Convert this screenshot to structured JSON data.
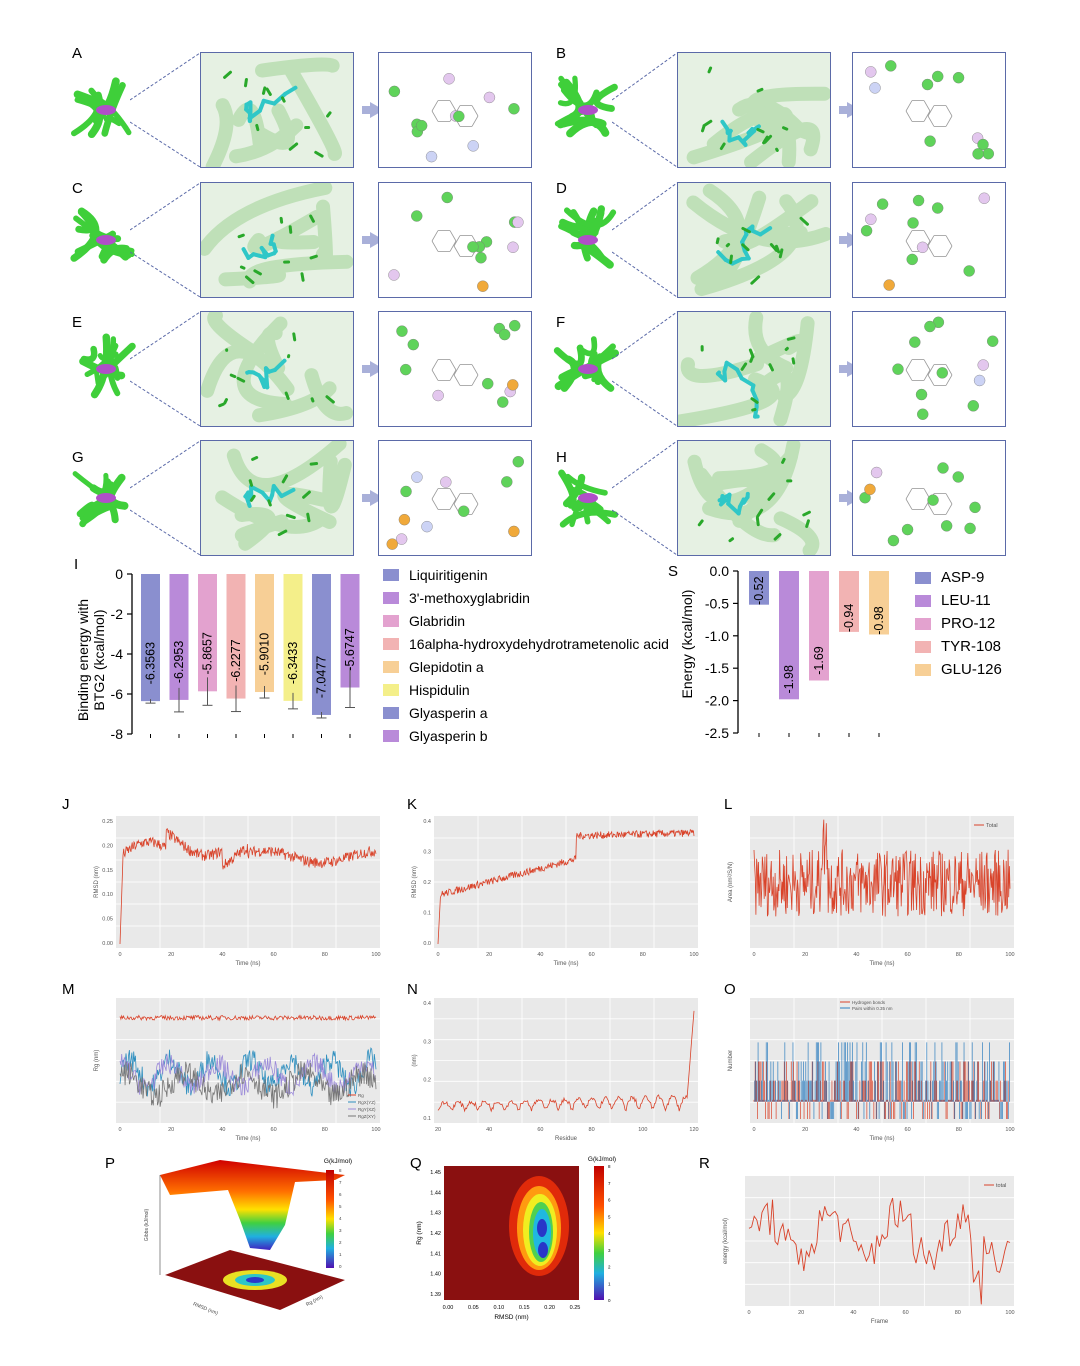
{
  "panels": {
    "labels": [
      "A",
      "B",
      "C",
      "D",
      "E",
      "F",
      "G",
      "H",
      "I",
      "S",
      "J",
      "K",
      "L",
      "M",
      "N",
      "O",
      "P",
      "Q",
      "R"
    ]
  },
  "colors": {
    "protein": "#3fcf3a",
    "ligand": "#2fc7c7",
    "frame": "#5b6aa8",
    "arrow": "#a9b0d9",
    "trace": "#d9432a",
    "trace_blue": "#2f7fbf"
  },
  "chart_data": [
    {
      "id": "I",
      "type": "bar",
      "ylabel": "Binding energy with BTG2 (kcal/mol)",
      "ylim": [
        -8,
        0
      ],
      "yticks": [
        0,
        -2,
        -4,
        -6,
        -8
      ],
      "categories": [
        "Liquiritigenin",
        "3'-methoxyglabridin",
        "Glabridin",
        "16alpha-hydroxydehydrotrametenolic acid",
        "Glepidotin a",
        "Hispidulin",
        "Glyasperin a",
        "Glyasperin b"
      ],
      "values": [
        -6.3563,
        -6.2953,
        -5.8657,
        -6.2277,
        -5.901,
        -6.3433,
        -7.0477,
        -5.6747
      ],
      "value_labels": [
        "-6.3563",
        "-6.2953",
        "-5.8657",
        "-6.2277",
        "-5.9010",
        "-6.3433",
        "-7.0477",
        "-5.6747"
      ],
      "errors": [
        0.1,
        0.6,
        0.7,
        0.65,
        0.3,
        0.4,
        0.15,
        1.0
      ],
      "colors": [
        "#8a8fcf",
        "#b98ad9",
        "#e3a2cf",
        "#f2b3b3",
        "#f7cf96",
        "#f4ef8a",
        "#8a8fcf",
        "#b98ad9"
      ]
    },
    {
      "id": "S",
      "type": "bar",
      "ylabel": "Energy (kcal/mol)",
      "ylim": [
        -2.5,
        0
      ],
      "yticks": [
        "0.0",
        "-0.5",
        "-1.0",
        "-1.5",
        "-2.0",
        "-2.5"
      ],
      "ytick_values": [
        0,
        -0.5,
        -1.0,
        -1.5,
        -2.0,
        -2.5
      ],
      "categories": [
        "ASP-9",
        "LEU-11",
        "PRO-12",
        "TYR-108",
        "GLU-126"
      ],
      "values": [
        -0.52,
        -1.98,
        -1.69,
        -0.94,
        -0.98
      ],
      "value_labels": [
        "-0.52",
        "-1.98",
        "-1.69",
        "-0.94",
        "-0.98"
      ],
      "colors": [
        "#8a8fcf",
        "#b98ad9",
        "#e3a2cf",
        "#f2b3b3",
        "#f7cf96"
      ]
    }
  ],
  "md": {
    "J": {
      "xlabel": "Time (ns)",
      "ylabel": "RMSD (nm)",
      "xticks": [
        "0",
        "20",
        "40",
        "60",
        "80",
        "100"
      ],
      "yticks": [
        "0.00",
        "0.05",
        "0.10",
        "0.15",
        "0.20",
        "0.25"
      ]
    },
    "K": {
      "xlabel": "Time (ns)",
      "ylabel": "RMSD (nm)",
      "xticks": [
        "0",
        "20",
        "40",
        "60",
        "80",
        "100"
      ],
      "yticks": [
        "0.0",
        "0.1",
        "0.2",
        "0.3",
        "0.4"
      ]
    },
    "L": {
      "xlabel": "Time (ns)",
      "ylabel": "Area (nm²/S/N)",
      "legend": "Total",
      "xticks": [
        "0",
        "20",
        "40",
        "60",
        "80",
        "100"
      ]
    },
    "M": {
      "xlabel": "Time (ns)",
      "ylabel": "Rg (nm)",
      "legend": [
        "Rg",
        "RgX(YZ)",
        "RgY(XZ)",
        "RgZ(XY)"
      ],
      "xticks": [
        "0",
        "20",
        "40",
        "60",
        "80",
        "100"
      ]
    },
    "N": {
      "xlabel": "Residue",
      "ylabel": "(nm)",
      "xticks": [
        "20",
        "40",
        "60",
        "80",
        "100",
        "120"
      ],
      "yticks": [
        "0.1",
        "0.2",
        "0.3",
        "0.4"
      ]
    },
    "O": {
      "xlabel": "Time (ns)",
      "ylabel": "Number",
      "legend": [
        "Hydrogen bonds",
        "Pairs within 0.35 nm"
      ],
      "xticks": [
        "0",
        "20",
        "40",
        "60",
        "80",
        "100"
      ]
    },
    "P": {
      "zlabel": "G(kJ/mol)",
      "xlabel": "RMSD (nm)",
      "ylabel": "Rg (nm)"
    },
    "Q": {
      "colorbar": "G(kJ/mol)",
      "xlabel": "RMSD (nm)",
      "ylabel": "Rg (nm)",
      "xticks": [
        "0.00",
        "0.05",
        "0.10",
        "0.15",
        "0.20",
        "0.25"
      ],
      "yticks": [
        "1.39",
        "1.40",
        "1.41",
        "1.42",
        "1.43",
        "1.44",
        "1.45"
      ]
    },
    "R": {
      "xlabel": "Frame",
      "ylabel": "energy (kcal/mol)",
      "legend": "total",
      "xticks": [
        "0",
        "20",
        "40",
        "60",
        "80",
        "100"
      ]
    }
  }
}
